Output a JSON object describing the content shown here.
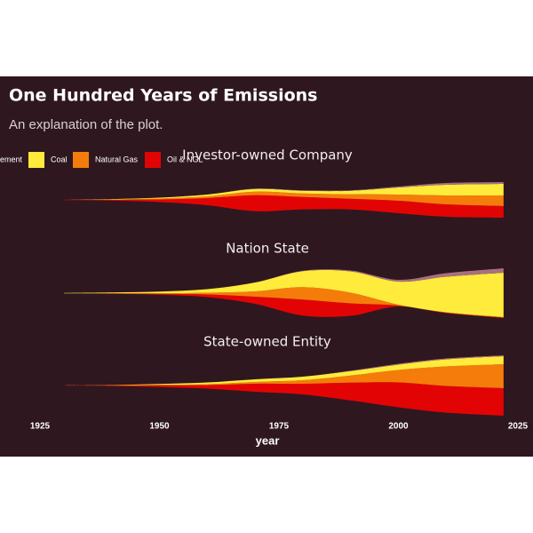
{
  "chart_data": {
    "type": "streamgraph",
    "title": "One Hundred Years of Emissions",
    "subtitle": "An explanation of the plot.",
    "x_label": "year",
    "x": [
      1930,
      1940,
      1950,
      1960,
      1970,
      1980,
      1990,
      2000,
      2010,
      2022
    ],
    "xlim": [
      1925,
      2025
    ],
    "xticks": [
      1925,
      1950,
      1975,
      2000,
      2025
    ],
    "series": [
      {
        "name": "Cement",
        "color": "#a8707e"
      },
      {
        "name": "Coal",
        "color": "#ffeb3b"
      },
      {
        "name": "Natural Gas",
        "color": "#f57c0a"
      },
      {
        "name": "Oil & NGL",
        "color": "#e20404"
      }
    ],
    "facets": [
      {
        "title": "Investor-owned Company",
        "values": [
          [
            0,
            0,
            0,
            0,
            0.5,
            0.5,
            0.5,
            1,
            2,
            2
          ],
          [
            0,
            0.5,
            1,
            2,
            3,
            3,
            4,
            8,
            12,
            13
          ],
          [
            0,
            0.3,
            1,
            2,
            4,
            4,
            5,
            7,
            10,
            12
          ],
          [
            0.5,
            1,
            3,
            8,
            18,
            14,
            12,
            14,
            14,
            13
          ]
        ]
      },
      {
        "title": "Nation State",
        "values": [
          [
            0,
            0,
            0,
            0,
            0,
            0.5,
            1,
            2,
            4,
            5
          ],
          [
            0.5,
            1,
            2,
            4,
            10,
            18,
            24,
            26,
            40,
            50
          ],
          [
            0,
            0,
            0.5,
            2,
            6,
            14,
            12,
            1,
            0.5,
            0.5
          ],
          [
            0,
            0.5,
            1,
            3,
            8,
            18,
            14,
            1,
            0.5,
            0.5
          ]
        ]
      },
      {
        "title": "State-owned Entity",
        "values": [
          [
            0,
            0,
            0,
            0,
            0,
            0,
            0.5,
            1,
            1,
            1
          ],
          [
            0,
            0.3,
            1,
            2,
            3,
            4,
            5,
            6,
            8,
            9
          ],
          [
            0,
            0.2,
            0.5,
            1,
            2,
            4,
            8,
            14,
            22,
            27
          ],
          [
            0.3,
            0.8,
            2,
            4,
            9,
            12,
            20,
            28,
            30,
            31
          ]
        ]
      }
    ]
  }
}
